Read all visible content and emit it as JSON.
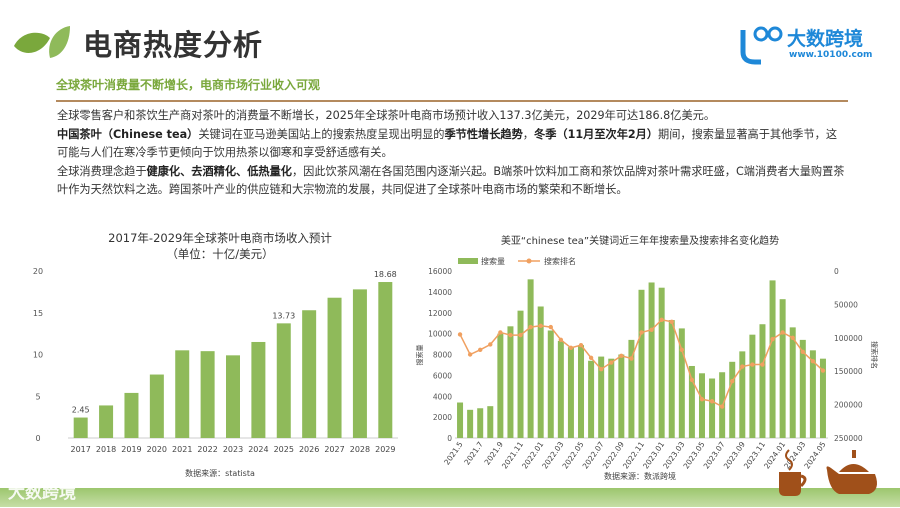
{
  "header": {
    "title": "电商热度分析",
    "logo_brand": "大数跨境",
    "logo_url": "www.10100.com",
    "logo_mark": "1C0"
  },
  "subtitle": "全球茶叶消费量不断增长，电商市场行业收入可观",
  "paragraphs": [
    {
      "parts": [
        {
          "t": "全球零售客户和茶饮生产商对茶叶的消费量不断增长，2025年全球茶叶电商市场预计收入137.3亿美元，2029年可达186.8亿美元。",
          "b": false
        }
      ]
    },
    {
      "parts": [
        {
          "t": "中国茶叶（Chinese tea）",
          "b": true
        },
        {
          "t": "关键词在亚马逊美国站上的搜索热度呈现出明显的",
          "b": false
        },
        {
          "t": "季节性增长趋势",
          "b": true
        },
        {
          "t": "，",
          "b": false
        },
        {
          "t": "冬季（11月至次年2月）",
          "b": true
        },
        {
          "t": "期间，搜索量显著高于其他季节，这可能与人们在寒冷季节更倾向于饮用热茶以御寒和享受舒适感有关。",
          "b": false
        }
      ]
    },
    {
      "parts": [
        {
          "t": "全球消费理念趋于",
          "b": false
        },
        {
          "t": "健康化、去酒精化、低热量化",
          "b": true
        },
        {
          "t": "，因此饮茶风潮在各国范围内逐渐兴起。B端茶叶饮料加工商和茶饮品牌对茶叶需求旺盛，C端消费者大量购置茶叶作为天然饮料之选。跨国茶叶产业的供应链和大宗物流的发展，共同促进了全球茶叶电商市场的繁荣和不断增长。",
          "b": false
        }
      ]
    }
  ],
  "watermark": "大数跨境",
  "colors": {
    "bar": "#8fba5a",
    "line": "#f0a060",
    "accent": "#7aa83c",
    "rule": "#b48a5e",
    "brown": "#a0501a"
  },
  "chart_data": [
    {
      "type": "bar",
      "title": "2017年-2029年全球茶叶电商市场收入预计",
      "subtitle": "（单位：十亿/美元）",
      "categories": [
        "2017",
        "2018",
        "2019",
        "2020",
        "2021",
        "2022",
        "2023",
        "2024",
        "2025",
        "2026",
        "2027",
        "2028",
        "2029"
      ],
      "values": [
        2.45,
        3.9,
        5.4,
        7.6,
        10.5,
        10.4,
        9.9,
        11.5,
        13.73,
        15.3,
        16.8,
        17.8,
        18.68
      ],
      "data_labels": {
        "0": "2.45",
        "8": "13.73",
        "12": "18.68"
      },
      "ylim": [
        0,
        20
      ],
      "yticks": [
        0,
        5,
        10,
        15,
        20
      ],
      "source": "数据来源：statista"
    },
    {
      "type": "bar+line",
      "title": "美亚“chinese tea”关键词近三年年搜索量及搜索排名变化趋势",
      "categories": [
        "2021.5",
        "2021.6",
        "2021.7",
        "2021.8",
        "2021.9",
        "2021.10",
        "2021.11",
        "2021.12",
        "2022.01",
        "2022.02",
        "2022.03",
        "2022.04",
        "2022.05",
        "2022.06",
        "2022.07",
        "2022.08",
        "2022.09",
        "2022.10",
        "2022.11",
        "2022.12",
        "2023.01",
        "2023.02",
        "2023.03",
        "2023.04",
        "2023.05",
        "2023.06",
        "2023.07",
        "2023.08",
        "2023.09",
        "2023.10",
        "2023.11",
        "2023.12",
        "2024.01",
        "2024.02",
        "2024.03",
        "2024.04",
        "2024.05"
      ],
      "shown_ticks": [
        "2021.5",
        "2021.7",
        "2021.9",
        "2021.11",
        "2022.01",
        "2022.03",
        "2022.05",
        "2022.07",
        "2022.09",
        "2022.11",
        "2023.01",
        "2023.03",
        "2023.05",
        "2023.07",
        "2023.09",
        "2023.11",
        "2024.01",
        "2024.03",
        "2024.05"
      ],
      "series": [
        {
          "name": "搜索量",
          "type": "bar",
          "axis": "left",
          "values": [
            3400,
            2700,
            2850,
            3050,
            10000,
            10700,
            12200,
            15200,
            12600,
            10300,
            9300,
            8700,
            8900,
            7400,
            7800,
            7600,
            8000,
            9400,
            14200,
            14900,
            14400,
            11300,
            10500,
            6900,
            6200,
            5700,
            6300,
            7300,
            8300,
            9900,
            10900,
            15100,
            13300,
            10600,
            9400,
            8400,
            7600
          ]
        },
        {
          "name": "搜索排名",
          "type": "line",
          "axis": "right",
          "values": [
            95000,
            125000,
            118000,
            110000,
            92000,
            96000,
            96000,
            84000,
            82000,
            84000,
            103000,
            115000,
            111000,
            130000,
            147000,
            137000,
            127000,
            131000,
            92000,
            88000,
            73000,
            76000,
            118000,
            163000,
            192000,
            195000,
            203000,
            165000,
            143000,
            140000,
            140000,
            102000,
            92000,
            100000,
            121000,
            135000,
            149000
          ]
        }
      ],
      "ylim": [
        0,
        16000
      ],
      "yticks": [
        0,
        2000,
        4000,
        6000,
        8000,
        10000,
        12000,
        14000,
        16000
      ],
      "y2lim": [
        0,
        250000
      ],
      "y2ticks": [
        0,
        50000,
        100000,
        150000,
        200000,
        250000
      ],
      "y2_inverted": true,
      "ylabel": "搜索量",
      "y2label": "搜索排名",
      "legend": "top-left",
      "source": "数据来源：数派跨境"
    }
  ]
}
